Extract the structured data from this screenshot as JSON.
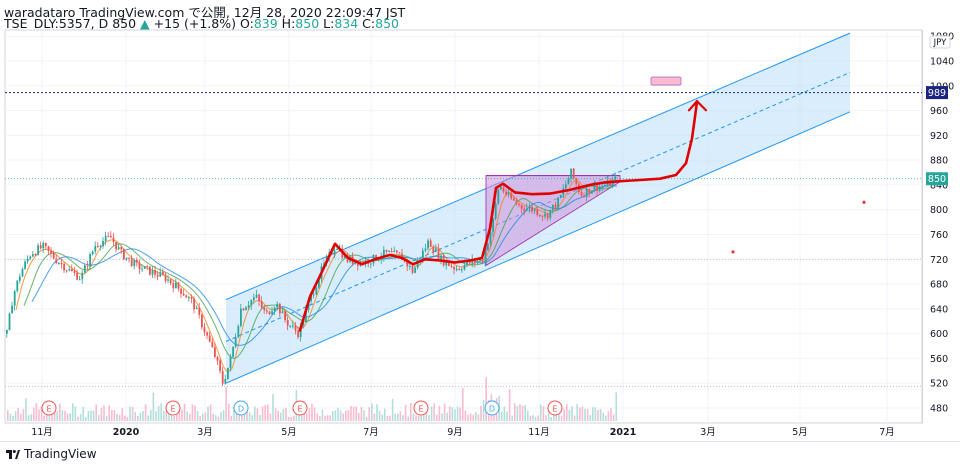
{
  "header": {
    "line1": "waradataro TradingView.com で公開, 12月 28, 2020 22:09:47 JST",
    "ticker": "TSE_DLY:5357, D",
    "last": "850",
    "change": "+15 (+1.8%)",
    "o_label": "O:",
    "o_value": "839",
    "h_label": "H:",
    "h_value": "850",
    "l_label": "L:",
    "l_value": "834",
    "c_label": "C:",
    "c_value": "850"
  },
  "currency": "JPY",
  "footer": {
    "brand": "TradingView"
  },
  "colors": {
    "up": "#26a69a",
    "down": "#ef5350",
    "channel_fill": "#bbdefb",
    "channel_line": "#2196f3",
    "triangle_fill": "#ce93d8",
    "drawing": "#e00000",
    "price_label": "#26a69a",
    "line_label": "#1a237e"
  },
  "chart_data": {
    "type": "candlestick",
    "y_axis": {
      "ticks": [
        480,
        520,
        560,
        600,
        640,
        680,
        720,
        760,
        800,
        840,
        880,
        920,
        960,
        1000,
        1040,
        1080
      ],
      "range": [
        458,
        1080
      ]
    },
    "x_axis": {
      "ticks": [
        "11月",
        "2020",
        "3月",
        "5月",
        "7月",
        "9月",
        "11月",
        "2021",
        "3月",
        "5月",
        "7月"
      ]
    },
    "price_labels": [
      {
        "value": 989,
        "label": "989",
        "kind": "horizontal-line"
      },
      {
        "value": 850,
        "label": "850",
        "kind": "last-price"
      }
    ],
    "events": [
      {
        "type": "E",
        "month": "11月 2019"
      },
      {
        "type": "E",
        "month": "2月 2020"
      },
      {
        "type": "D",
        "month": "3月 2020"
      },
      {
        "type": "E",
        "month": "5月 2020"
      },
      {
        "type": "E",
        "month": "8月 2020"
      },
      {
        "type": "D",
        "month": "9月 2020"
      },
      {
        "type": "E",
        "month": "11月 2020"
      }
    ],
    "price_path_approx": [
      {
        "date": "2019-10",
        "price": 600
      },
      {
        "date": "2019-11",
        "price": 740
      },
      {
        "date": "2019-12",
        "price": 755
      },
      {
        "date": "2020-01",
        "price": 730
      },
      {
        "date": "2020-02",
        "price": 690
      },
      {
        "date": "2020-03",
        "price": 530
      },
      {
        "date": "2020-04",
        "price": 650
      },
      {
        "date": "2020-05",
        "price": 600
      },
      {
        "date": "2020-06",
        "price": 740
      },
      {
        "date": "2020-07",
        "price": 720
      },
      {
        "date": "2020-08",
        "price": 740
      },
      {
        "date": "2020-09",
        "price": 710
      },
      {
        "date": "2020-10",
        "price": 830
      },
      {
        "date": "2020-11",
        "price": 820
      },
      {
        "date": "2020-12",
        "price": 850
      }
    ]
  }
}
